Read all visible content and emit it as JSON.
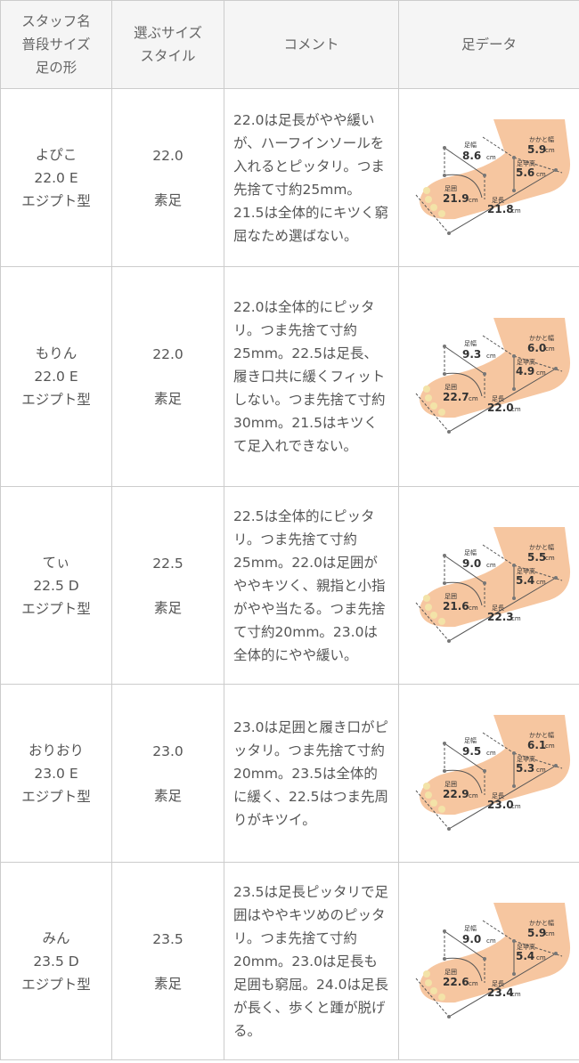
{
  "header": {
    "staff": [
      "スタッフ名",
      "普段サイズ",
      "足の形"
    ],
    "choose": [
      "選ぶサイズ",
      "スタイル"
    ],
    "comment": "コメント",
    "foot": "足データ"
  },
  "foot_labels": {
    "width": "足幅",
    "heel": "かかと幅",
    "instep": "足甲高",
    "girth": "足囲",
    "length": "足長",
    "unit": "cm"
  },
  "colors": {
    "foot": "#f6c6a0",
    "line": "#555555",
    "border": "#cccccc",
    "header_bg": "#f5f5f5"
  },
  "rows": [
    {
      "name": "よぴこ",
      "size": "22.0 E",
      "shape": "エジプト型",
      "choose": "22.0",
      "style": "素足",
      "comment": "22.0は足長がやや緩いが、ハーフインソールを入れるとピッタリ。つま先捨て寸約25mm。21.5は全体的にキツく窮屈なため選ばない。",
      "foot": {
        "width": "8.6",
        "heel": "5.9",
        "instep": "5.6",
        "girth": "21.9",
        "length": "21.8"
      },
      "h": 200
    },
    {
      "name": "もりん",
      "size": "22.0 E",
      "shape": "エジプト型",
      "choose": "22.0",
      "style": "素足",
      "comment": "22.0は全体的にピッタリ。つま先捨て寸約25mm。22.5は足長、履き口共に緩くフィットしない。つま先捨て寸約30mm。21.5はキツくて足入れできない。",
      "foot": {
        "width": "9.3",
        "heel": "6.0",
        "instep": "4.9",
        "girth": "22.7",
        "length": "22.0"
      },
      "h": 247
    },
    {
      "name": "てぃ",
      "size": "22.5 D",
      "shape": "エジプト型",
      "choose": "22.5",
      "style": "素足",
      "comment": "22.5は全体的にピッタリ。つま先捨て寸約25mm。22.0は足囲がややキツく、親指と小指がやや当たる。つま先捨て寸約20mm。23.0は全体的にやや緩い。",
      "foot": {
        "width": "9.0",
        "heel": "5.5",
        "instep": "5.4",
        "girth": "21.6",
        "length": "22.3"
      },
      "h": 222
    },
    {
      "name": "おりおり",
      "size": "23.0 E",
      "shape": "エジプト型",
      "choose": "23.0",
      "style": "素足",
      "comment": "23.0は足囲と履き口がピッタリ。つま先捨て寸約20mm。23.5は全体的に緩く、22.5はつま先周りがキツイ。",
      "foot": {
        "width": "9.5",
        "heel": "6.1",
        "instep": "5.3",
        "girth": "22.9",
        "length": "23.0"
      },
      "h": 200
    },
    {
      "name": "みん",
      "size": "23.5 D",
      "shape": "エジプト型",
      "choose": "23.5",
      "style": "素足",
      "comment": "23.5は足長ピッタリで足囲はややキツめのピッタリ。つま先捨て寸約20mm。23.0は足長も足囲も窮屈。24.0は足長が長く、歩くと踵が脱げる。",
      "foot": {
        "width": "9.0",
        "heel": "5.9",
        "instep": "5.4",
        "girth": "22.6",
        "length": "23.4"
      },
      "h": 222
    }
  ]
}
